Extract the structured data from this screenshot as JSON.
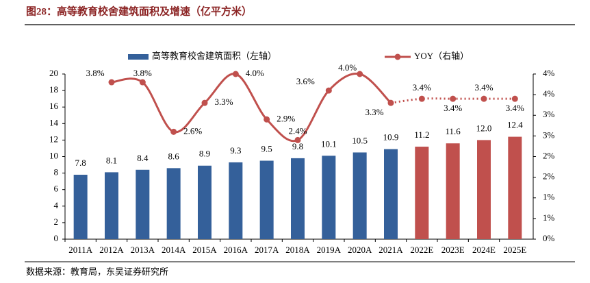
{
  "title": "图28：高等教育校舍建筑面积及增速（亿平方米）",
  "source": "数据来源：教育局，东吴证券研究所",
  "chart_data": {
    "type": "bar-line",
    "categories": [
      "2011A",
      "2012A",
      "2013A",
      "2014A",
      "2015A",
      "2016A",
      "2017A",
      "2018A",
      "2019A",
      "2020A",
      "2021A",
      "2022E",
      "2023E",
      "2024E",
      "2025E"
    ],
    "series": [
      {
        "name": "高等教育校舍建筑面积（左轴）",
        "type": "bar",
        "color": "#34609a",
        "colors": [
          "#34609a",
          "#34609a",
          "#34609a",
          "#34609a",
          "#34609a",
          "#34609a",
          "#34609a",
          "#34609a",
          "#34609a",
          "#34609a",
          "#34609a",
          "#c0504d",
          "#c0504d",
          "#c0504d",
          "#c0504d"
        ],
        "values": [
          7.8,
          8.1,
          8.4,
          8.6,
          8.9,
          9.3,
          9.5,
          9.8,
          10.1,
          10.5,
          10.9,
          11.2,
          11.6,
          12.0,
          12.4
        ],
        "value_labels": [
          "7.8",
          "8.1",
          "8.4",
          "8.6",
          "8.9",
          "9.3",
          "9.5",
          "9.8",
          "10.1",
          "10.5",
          "10.9",
          "11.2",
          "11.6",
          "12.0",
          "12.4"
        ]
      },
      {
        "name": "YOY（右轴）",
        "type": "line",
        "axis": "y2",
        "color": "#c0504d",
        "dashed_from_index": 10,
        "values": [
          null,
          3.8,
          3.8,
          2.6,
          3.3,
          4.0,
          2.9,
          2.4,
          3.6,
          4.0,
          3.3,
          3.4,
          3.4,
          3.4,
          3.4
        ],
        "value_labels": [
          null,
          "3.8%",
          "3.8%",
          "2.6%",
          "3.3%",
          "4.0%",
          "2.9%",
          "2.4%",
          "3.6%",
          "4.0%",
          "3.3%",
          "3.4%",
          "3.4%",
          "3.4%",
          "3.4%"
        ]
      }
    ],
    "ylim": [
      0,
      20
    ],
    "yticks": [
      0,
      2,
      4,
      6,
      8,
      10,
      12,
      14,
      16,
      18,
      20
    ],
    "y2lim": [
      0,
      4
    ],
    "y2ticks": [
      {
        "value": 0,
        "label": "0%"
      },
      {
        "value": 0.5,
        "label": "1%"
      },
      {
        "value": 1,
        "label": "1%"
      },
      {
        "value": 1.5,
        "label": "2%"
      },
      {
        "value": 2,
        "label": "2%"
      },
      {
        "value": 2.5,
        "label": "3%"
      },
      {
        "value": 3,
        "label": "3%"
      },
      {
        "value": 3.5,
        "label": "4%"
      },
      {
        "value": 4,
        "label": "4%"
      }
    ]
  }
}
